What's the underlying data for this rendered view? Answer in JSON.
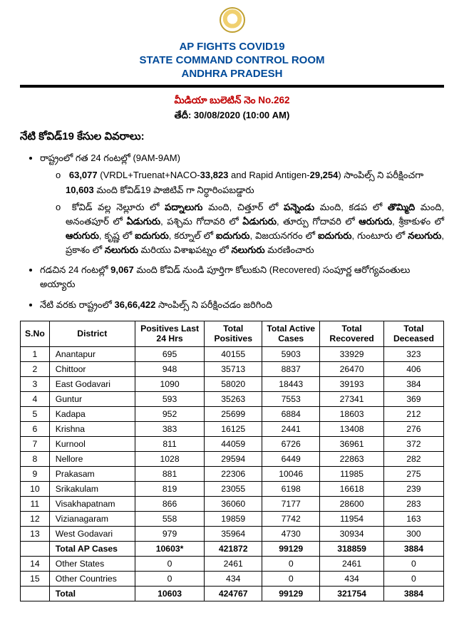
{
  "header": {
    "l1": "AP FIGHTS COVID19",
    "l2": "STATE COMMAND CONTROL ROOM",
    "l3": "ANDHRA PRADESH"
  },
  "bulletin": {
    "line1": "మీడియా బులెటిన్ నెం No.262",
    "line2_label": "తేదీ",
    "line2_value": ": 30/08/2020 (10:00 AM)"
  },
  "subhead": "నేటి కోవిడ్19 కేసుల వివరాలు:",
  "p1_intro": "రాష్ట్రంలో గత 24 గంటల్లో  (9AM-9AM)",
  "p1_a_pre": "",
  "p1_a_b1": "63,077",
  "p1_a_mid": " (VRDL+Truenat+NACO-",
  "p1_a_b2": "33,823",
  "p1_a_mid2": " and Rapid Antigen-",
  "p1_a_b3": "29,254",
  "p1_a_mid3": ") సాంపిల్స్ ని పరీక్షించగా ",
  "p1_a_b4": "10,603",
  "p1_a_tail": " మంది కోవిడ్19 పాజిటివ్ గా నిర్ధారింపబడ్డారు",
  "p1_b_1": "కోవిడ్ వల్ల నెల్లూరు లో ",
  "p1_b_b1": "పద్నాలుగు",
  "p1_b_2": " మంది, చిత్తూర్ లో ",
  "p1_b_b2": "పన్నెండు",
  "p1_b_3": " మంది, కడప లో ",
  "p1_b_b3": "తొమ్మిది",
  "p1_b_4": " మంది, అనంతపూర్ లో ",
  "p1_b_b4": "ఏడుగురు",
  "p1_b_5": ", పశ్చిమ గోదావరి లో ",
  "p1_b_b5": "ఏడుగురు",
  "p1_b_6": ", తూర్పు గోదావరి లో ",
  "p1_b_b6": "ఆరుగురు",
  "p1_b_7": ", శ్రీకాకుళం లో ",
  "p1_b_b7": "ఆరుగురు",
  "p1_b_8": ", కృష్ణ లో ",
  "p1_b_b8": "ఐదుగురు",
  "p1_b_9": ", కర్నూల్ లో ",
  "p1_b_b9": "ఐదుగురు",
  "p1_b_10": ", విజయనగరం లో ",
  "p1_b_b10": "ఐదుగురు",
  "p1_b_11": ", గుంటూరు లో ",
  "p1_b_b11": "నలుగురు",
  "p1_b_12": ", ప్రకాశం లో ",
  "p1_b_b12": "నలుగురు",
  "p1_b_13": " మరియు విశాఖపట్నం లో ",
  "p1_b_b13": "నలుగురు",
  "p1_b_14": " మరణించారు",
  "p2_pre": "గడచిన 24 గంటల్లో ",
  "p2_b": "9,067",
  "p2_tail": " మంది కోవిడ్ నుండి పూర్తిగా కోలుకుని (Recovered) సంపూర్ణ ఆరోగ్యవంతులు అయ్యారు",
  "p3_pre": "నేటి వరకు రాష్ట్రంలో ",
  "p3_b": "36,66,422",
  "p3_tail": "  సాంపిల్స్ ని పరీక్షించడం జరిగింది",
  "table": {
    "headers": [
      "S.No",
      "District",
      "Positives Last 24 Hrs",
      "Total Positives",
      "Total Active Cases",
      "Total Recovered",
      "Total Deceased"
    ],
    "rows": [
      [
        "1",
        "Anantapur",
        "695",
        "40155",
        "5903",
        "33929",
        "323"
      ],
      [
        "2",
        "Chittoor",
        "948",
        "35713",
        "8837",
        "26470",
        "406"
      ],
      [
        "3",
        "East Godavari",
        "1090",
        "58020",
        "18443",
        "39193",
        "384"
      ],
      [
        "4",
        "Guntur",
        "593",
        "35263",
        "7553",
        "27341",
        "369"
      ],
      [
        "5",
        "Kadapa",
        "952",
        "25699",
        "6884",
        "18603",
        "212"
      ],
      [
        "6",
        "Krishna",
        "383",
        "16125",
        "2441",
        "13408",
        "276"
      ],
      [
        "7",
        "Kurnool",
        "811",
        "44059",
        "6726",
        "36961",
        "372"
      ],
      [
        "8",
        "Nellore",
        "1028",
        "29594",
        "6449",
        "22863",
        "282"
      ],
      [
        "9",
        "Prakasam",
        "881",
        "22306",
        "10046",
        "11985",
        "275"
      ],
      [
        "10",
        "Srikakulam",
        "819",
        "23055",
        "6198",
        "16618",
        "239"
      ],
      [
        "11",
        "Visakhapatnam",
        "866",
        "36060",
        "7177",
        "28600",
        "283"
      ],
      [
        "12",
        "Vizianagaram",
        "558",
        "19859",
        "7742",
        "11954",
        "163"
      ],
      [
        "13",
        "West Godavari",
        "979",
        "35964",
        "4730",
        "30934",
        "300"
      ]
    ],
    "subtotal": [
      "",
      "Total AP Cases",
      "10603*",
      "421872",
      "99129",
      "318859",
      "3884"
    ],
    "extra": [
      [
        "14",
        "Other States",
        "0",
        "2461",
        "0",
        "2461",
        "0"
      ],
      [
        "15",
        "Other Countries",
        "0",
        "434",
        "0",
        "434",
        "0"
      ]
    ],
    "total": [
      "",
      "Total",
      "10603",
      "424767",
      "99129",
      "321754",
      "3884"
    ]
  }
}
